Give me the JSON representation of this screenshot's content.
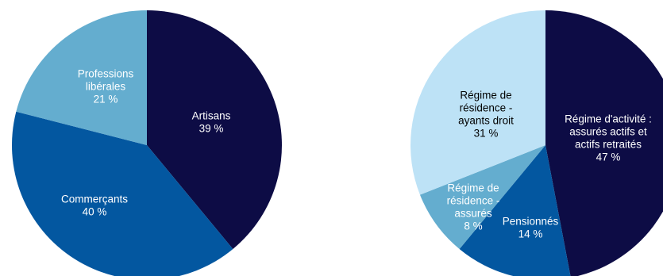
{
  "chart_data": [
    {
      "type": "pie",
      "title": "",
      "start_angle_deg": 0,
      "direction": "clockwise",
      "slices": [
        {
          "label_lines": [
            "Artisans"
          ],
          "value": 39,
          "value_text": "39 %",
          "color": "#0d0c45",
          "text_color": "#ffffff"
        },
        {
          "label_lines": [
            "Commerçants"
          ],
          "value": 40,
          "value_text": "40 %",
          "color": "#0357a0",
          "text_color": "#ffffff"
        },
        {
          "label_lines": [
            "Professions",
            "libérales"
          ],
          "value": 21,
          "value_text": "21 %",
          "color": "#64adcf",
          "text_color": "#ffffff"
        }
      ]
    },
    {
      "type": "pie",
      "title": "",
      "start_angle_deg": 0,
      "direction": "clockwise",
      "slices": [
        {
          "label_lines": [
            "Régime d'activité :",
            "assurés actifs et",
            "actifs retraités"
          ],
          "value": 47,
          "value_text": "47 %",
          "color": "#0d0c45",
          "text_color": "#ffffff"
        },
        {
          "label_lines": [
            "Pensionnés"
          ],
          "value": 14,
          "value_text": "14 %",
          "color": "#0357a0",
          "text_color": "#ffffff"
        },
        {
          "label_lines": [
            "Régime de",
            "résidence -",
            "assurés"
          ],
          "value": 8,
          "value_text": "8 %",
          "color": "#64adcf",
          "text_color": "#ffffff"
        },
        {
          "label_lines": [
            "Régime de",
            "résidence -",
            "ayants droit"
          ],
          "value": 31,
          "value_text": "31 %",
          "color": "#bde2f6",
          "text_color": "#000000"
        }
      ]
    }
  ]
}
